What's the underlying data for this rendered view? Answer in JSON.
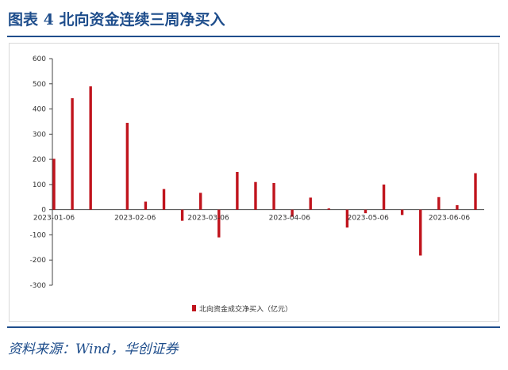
{
  "figure": {
    "title": "图表 4  北向资金连续三周净买入",
    "source": "资料来源：Wind，华创证券"
  },
  "chart_data": {
    "type": "bar",
    "ylim": [
      -300,
      600
    ],
    "yticks": [
      -300,
      -200,
      -100,
      0,
      100,
      200,
      300,
      400,
      500,
      600
    ],
    "grid": false,
    "legend_position": "bottom",
    "series": [
      {
        "name": "北向资金成交净买入（亿元）",
        "color": "#c0141d",
        "x": [
          "2023-01-06",
          "2023-01-13",
          "2023-01-20",
          "2023-02-03",
          "2023-02-10",
          "2023-02-17",
          "2023-02-24",
          "2023-03-03",
          "2023-03-10",
          "2023-03-17",
          "2023-03-24",
          "2023-03-31",
          "2023-04-07",
          "2023-04-14",
          "2023-04-21",
          "2023-04-28",
          "2023-05-05",
          "2023-05-12",
          "2023-05-19",
          "2023-05-26",
          "2023-06-02",
          "2023-06-09",
          "2023-06-16"
        ],
        "values": [
          202,
          443,
          490,
          345,
          32,
          82,
          -44,
          67,
          -110,
          150,
          110,
          106,
          -28,
          48,
          5,
          -71,
          -14,
          100,
          -21,
          -182,
          50,
          18,
          145
        ]
      }
    ],
    "xticks": [
      "2023-01-06",
      "2023-02-06",
      "2023-03-06",
      "2023-04-06",
      "2023-05-06",
      "2023-06-06"
    ]
  }
}
